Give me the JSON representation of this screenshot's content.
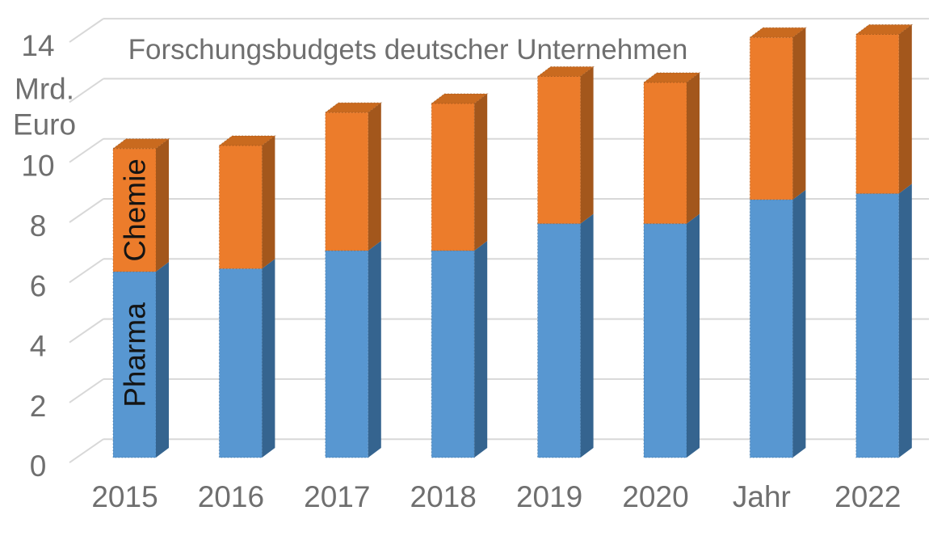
{
  "chart_data": {
    "type": "bar",
    "variant": "stacked-3d-columns",
    "title": "Forschungsbudgets deutscher Unternehmen",
    "y_axis_unit": "Mrd. Euro",
    "x_axis_title": "Jahr",
    "categories": [
      "2015",
      "2016",
      "2017",
      "2018",
      "2019",
      "2020",
      "Jahr",
      "2022"
    ],
    "series": [
      {
        "name": "Pharma",
        "color": "#5897d1",
        "side_color": "#35648f",
        "values": [
          5.9,
          6.0,
          6.6,
          6.6,
          7.5,
          7.5,
          8.3,
          8.5
        ]
      },
      {
        "name": "Chemie",
        "color": "#ec7c2b",
        "side_color": "#a3571c",
        "top_color": "#c96a1f",
        "values": [
          4.1,
          4.1,
          4.6,
          4.9,
          4.9,
          4.7,
          5.4,
          5.3
        ]
      }
    ],
    "totals": [
      10.0,
      10.1,
      11.2,
      11.5,
      12.4,
      12.2,
      13.7,
      13.8
    ],
    "ylim": [
      0,
      14
    ],
    "yticks": [
      {
        "value": 0,
        "lines": [
          "0"
        ]
      },
      {
        "value": 2,
        "lines": [
          "2"
        ]
      },
      {
        "value": 4,
        "lines": [
          "4"
        ]
      },
      {
        "value": 6,
        "lines": [
          "6"
        ]
      },
      {
        "value": 8,
        "lines": [
          "8"
        ]
      },
      {
        "value": 10,
        "lines": [
          "10"
        ]
      },
      {
        "value": 12,
        "lines": [
          "Mrd.",
          "Euro"
        ]
      },
      {
        "value": 14,
        "lines": [
          "14"
        ]
      }
    ],
    "grid": true,
    "legend": "series names printed vertically on the first column"
  },
  "colors": {
    "background": "#ffffff",
    "grid": "#d8d8d8",
    "axis_text": "#6f6f6f",
    "title_text": "#6f6f6f",
    "bar_label_text": "#141414",
    "pharma_front": "#5897d1",
    "pharma_side": "#35648f",
    "chemie_front": "#ec7c2b",
    "chemie_side": "#a3571c",
    "chemie_top": "#c96a1f"
  }
}
